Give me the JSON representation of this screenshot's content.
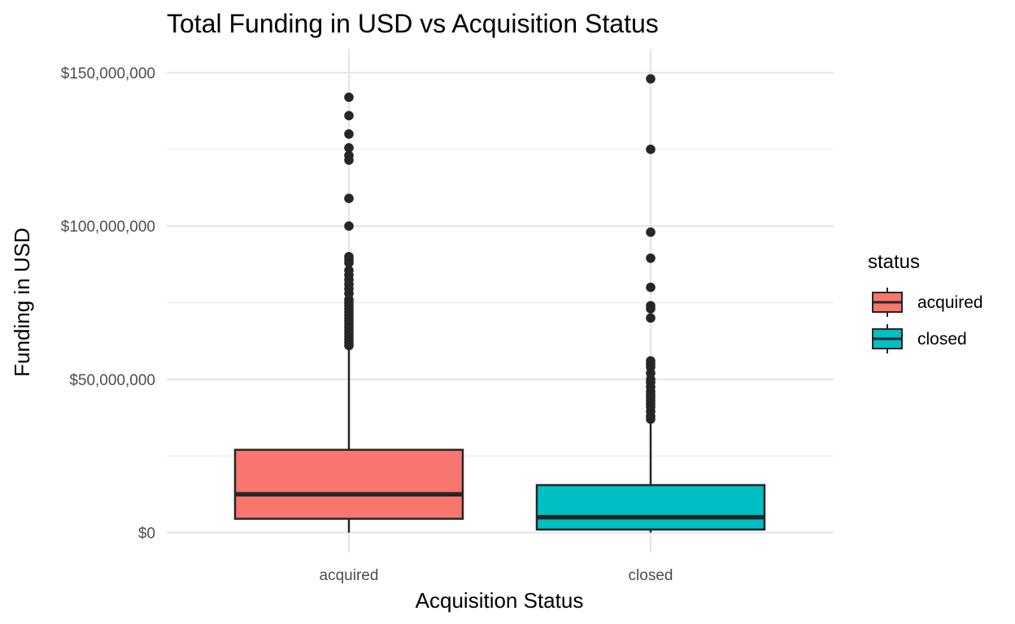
{
  "chart_data": {
    "type": "box",
    "title": "Total Funding in USD vs Acquisition Status",
    "xlabel": "Acquisition Status",
    "ylabel": "Funding in USD",
    "ylim": [
      -5000000,
      152000000
    ],
    "y_ticks": [
      0,
      50000000,
      100000000,
      150000000
    ],
    "y_tick_labels": [
      "$0",
      "$50,000,000",
      "$100,000,000",
      "$150,000,000"
    ],
    "categories": [
      "acquired",
      "closed"
    ],
    "legend": {
      "title": "status",
      "position": "right",
      "entries": [
        "acquired",
        "closed"
      ]
    },
    "grid": true,
    "series": [
      {
        "name": "acquired",
        "color": "#F8766D",
        "whisker_low": 0,
        "q1": 4500000,
        "median": 12500000,
        "q3": 27000000,
        "whisker_high": 60500000,
        "outliers": [
          142000000,
          136000000,
          130000000,
          125500000,
          123000000,
          121500000,
          109000000,
          100000000,
          90000000,
          89000000,
          88000000,
          85500000,
          84000000,
          82500000,
          81000000,
          79500000,
          78000000,
          76000000,
          75000000,
          74000000,
          73000000,
          72000000,
          71000000,
          70000000,
          69000000,
          68000000,
          67000000,
          66000000,
          65000000,
          64000000,
          63000000,
          62000000,
          61000000
        ]
      },
      {
        "name": "closed",
        "color": "#00BFC4",
        "whisker_low": 0,
        "q1": 1000000,
        "median": 5000000,
        "q3": 15500000,
        "whisker_high": 35500000,
        "outliers": [
          148000000,
          125000000,
          98000000,
          89500000,
          80000000,
          74000000,
          73000000,
          70000000,
          56000000,
          55000000,
          54000000,
          52000000,
          50000000,
          49000000,
          47500000,
          46000000,
          45000000,
          44000000,
          43000000,
          42000000,
          41000000,
          39500000,
          38000000,
          37000000
        ]
      }
    ]
  }
}
